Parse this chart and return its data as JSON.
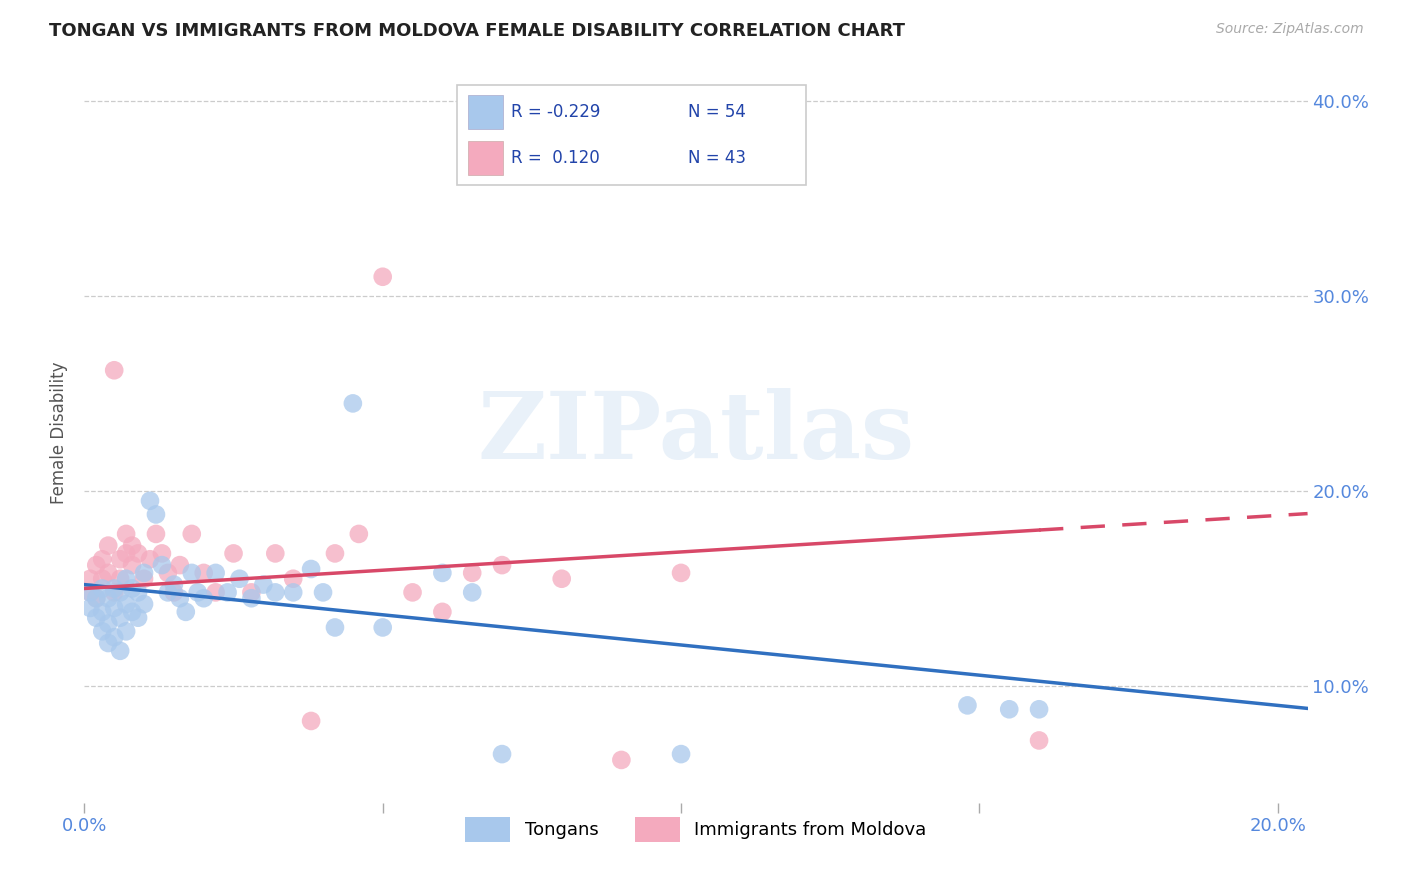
{
  "title": "TONGAN VS IMMIGRANTS FROM MOLDOVA FEMALE DISABILITY CORRELATION CHART",
  "source": "Source: ZipAtlas.com",
  "ylabel": "Female Disability",
  "x_min": 0.0,
  "x_max": 0.205,
  "y_min": 0.04,
  "y_max": 0.42,
  "y_ticks": [
    0.1,
    0.2,
    0.3,
    0.4
  ],
  "y_tick_labels": [
    "10.0%",
    "20.0%",
    "30.0%",
    "40.0%"
  ],
  "legend_series": [
    "Tongans",
    "Immigrants from Moldova"
  ],
  "r_tongan": -0.229,
  "n_tongan": 54,
  "r_moldova": 0.12,
  "n_moldova": 43,
  "blue_scatter_color": "#A8C8EC",
  "pink_scatter_color": "#F4AABE",
  "blue_line_color": "#3070C0",
  "pink_line_color": "#D84868",
  "watermark_text": "ZIPatlas",
  "tongan_x": [
    0.001,
    0.001,
    0.002,
    0.002,
    0.003,
    0.003,
    0.003,
    0.004,
    0.004,
    0.004,
    0.005,
    0.005,
    0.005,
    0.006,
    0.006,
    0.006,
    0.007,
    0.007,
    0.007,
    0.008,
    0.008,
    0.009,
    0.009,
    0.01,
    0.01,
    0.011,
    0.012,
    0.013,
    0.014,
    0.015,
    0.016,
    0.017,
    0.018,
    0.019,
    0.02,
    0.022,
    0.024,
    0.026,
    0.028,
    0.03,
    0.032,
    0.035,
    0.038,
    0.04,
    0.042,
    0.045,
    0.05,
    0.06,
    0.065,
    0.07,
    0.1,
    0.148,
    0.155,
    0.16
  ],
  "tongan_y": [
    0.148,
    0.14,
    0.145,
    0.135,
    0.15,
    0.138,
    0.128,
    0.145,
    0.132,
    0.122,
    0.15,
    0.14,
    0.125,
    0.148,
    0.135,
    0.118,
    0.155,
    0.142,
    0.128,
    0.15,
    0.138,
    0.148,
    0.135,
    0.158,
    0.142,
    0.195,
    0.188,
    0.162,
    0.148,
    0.152,
    0.145,
    0.138,
    0.158,
    0.148,
    0.145,
    0.158,
    0.148,
    0.155,
    0.145,
    0.152,
    0.148,
    0.148,
    0.16,
    0.148,
    0.13,
    0.245,
    0.13,
    0.158,
    0.148,
    0.065,
    0.065,
    0.09,
    0.088,
    0.088
  ],
  "moldova_x": [
    0.001,
    0.001,
    0.002,
    0.002,
    0.003,
    0.003,
    0.004,
    0.004,
    0.005,
    0.005,
    0.006,
    0.006,
    0.007,
    0.007,
    0.008,
    0.008,
    0.009,
    0.01,
    0.011,
    0.012,
    0.013,
    0.014,
    0.015,
    0.016,
    0.018,
    0.02,
    0.022,
    0.025,
    0.028,
    0.032,
    0.035,
    0.038,
    0.042,
    0.046,
    0.05,
    0.055,
    0.06,
    0.065,
    0.07,
    0.08,
    0.09,
    0.1,
    0.16
  ],
  "moldova_y": [
    0.155,
    0.148,
    0.162,
    0.145,
    0.165,
    0.155,
    0.172,
    0.158,
    0.262,
    0.148,
    0.165,
    0.155,
    0.178,
    0.168,
    0.172,
    0.162,
    0.168,
    0.155,
    0.165,
    0.178,
    0.168,
    0.158,
    0.148,
    0.162,
    0.178,
    0.158,
    0.148,
    0.168,
    0.148,
    0.168,
    0.155,
    0.082,
    0.168,
    0.178,
    0.31,
    0.148,
    0.138,
    0.158,
    0.162,
    0.155,
    0.062,
    0.158,
    0.072
  ]
}
